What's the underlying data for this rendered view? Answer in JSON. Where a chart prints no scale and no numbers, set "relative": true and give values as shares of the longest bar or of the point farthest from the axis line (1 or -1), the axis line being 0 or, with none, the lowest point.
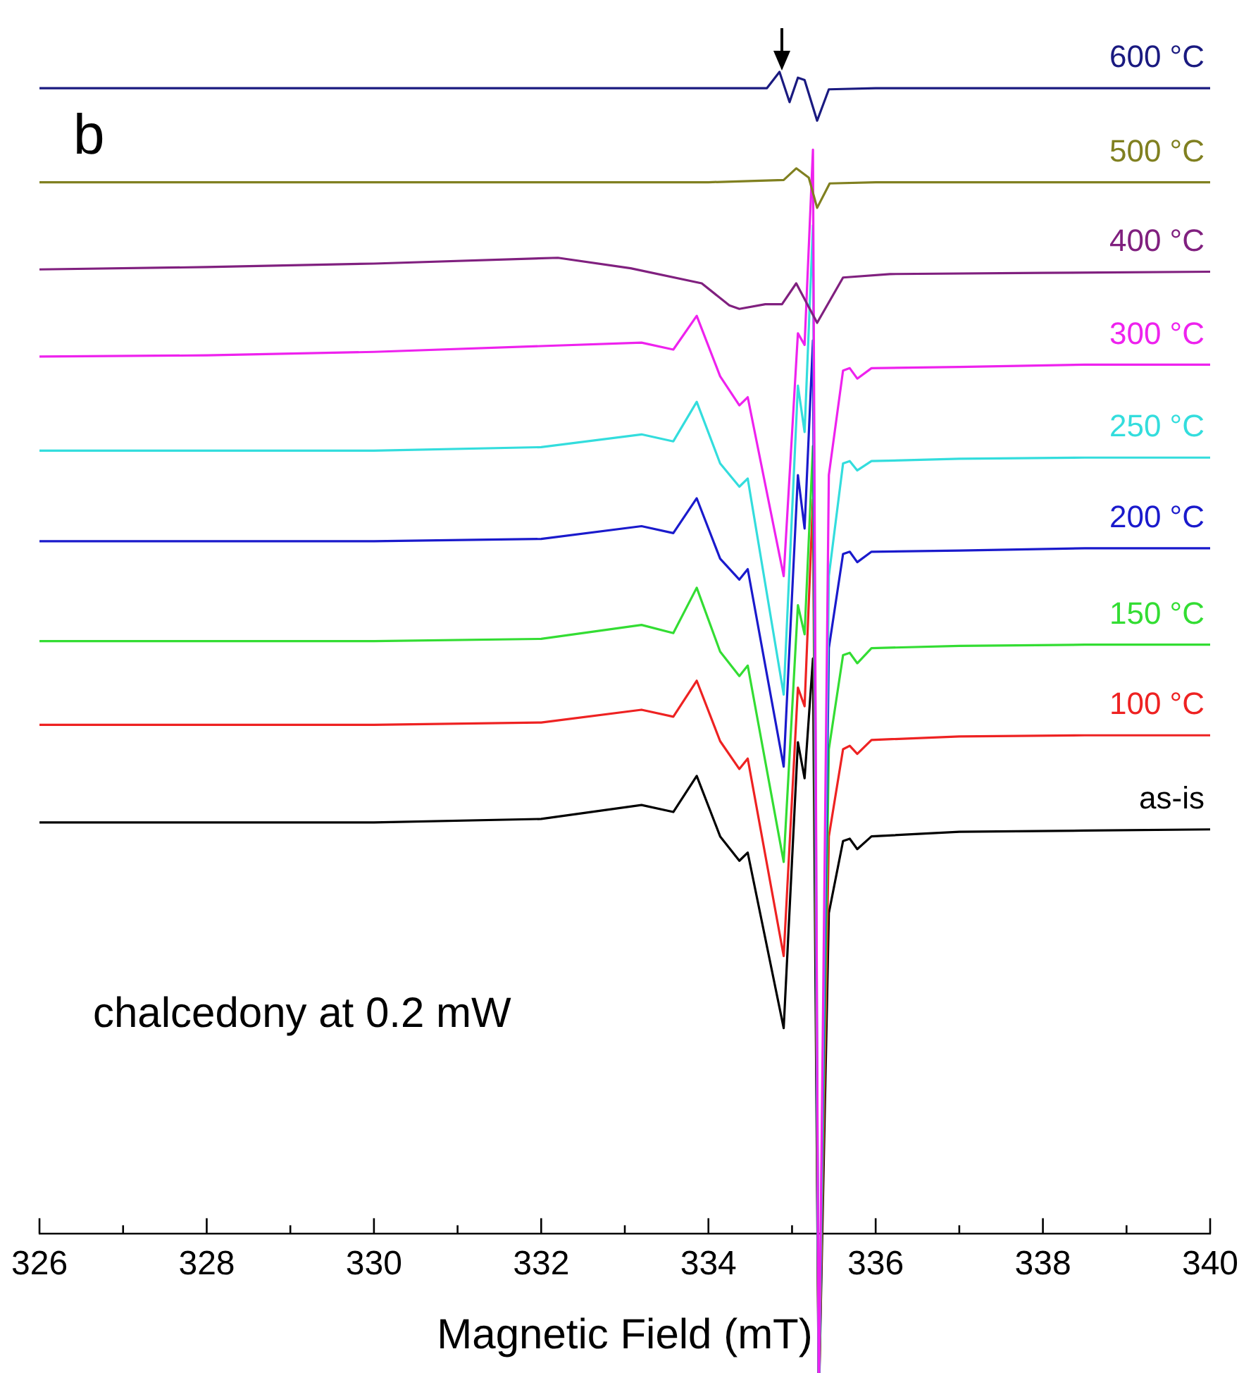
{
  "chart_data": {
    "type": "line",
    "relative": true,
    "xlabel": "Magnetic Field (mT)",
    "xlim": [
      326,
      340
    ],
    "xticks": [
      326,
      {
        "value": 327,
        "label": null
      },
      328,
      {
        "value": 329,
        "label": null
      },
      330,
      {
        "value": 331,
        "label": null
      },
      332,
      {
        "value": 333,
        "label": null
      },
      334,
      {
        "value": 335,
        "label": null
      },
      336,
      {
        "value": 337,
        "label": null
      },
      338,
      {
        "value": 339,
        "label": null
      },
      340
    ],
    "x": [
      326,
      328,
      330,
      332,
      333.2,
      333.58,
      333.86,
      334.14,
      334.37,
      334.47,
      334.9,
      335.07,
      335.15,
      335.25,
      335.32,
      335.44,
      335.61,
      335.69,
      335.78,
      335.95,
      337,
      338.5,
      340
    ],
    "marker": "none",
    "line_style": "solid",
    "grid": false,
    "annotations": [
      "b",
      "chalcedony at 0.2 mW"
    ],
    "series": [
      {
        "name": "600 °C",
        "color": "#1a1a80",
        "x": [
          326,
          330,
          334,
          334.7,
          334.85,
          334.97,
          335.07,
          335.15,
          335.3,
          335.44,
          336,
          340
        ],
        "values": [
          0.986,
          0.986,
          0.986,
          0.986,
          1.0,
          0.974,
          0.995,
          0.993,
          0.958,
          0.985,
          0.986,
          0.986
        ]
      },
      {
        "name": "500 °C",
        "color": "#808020",
        "x": [
          326,
          330,
          334,
          334.9,
          335.05,
          335.2,
          335.3,
          335.45,
          336,
          340
        ],
        "values": [
          0.905,
          0.905,
          0.905,
          0.907,
          0.917,
          0.909,
          0.883,
          0.904,
          0.905,
          0.905
        ]
      },
      {
        "name": "400 °C",
        "color": "#80207f",
        "x": [
          326,
          328,
          330,
          332.2,
          333.07,
          333.92,
          334.25,
          334.37,
          334.68,
          334.88,
          335.05,
          335.3,
          335.61,
          336.17,
          338,
          340
        ],
        "values": [
          0.83,
          0.832,
          0.835,
          0.84,
          0.831,
          0.818,
          0.799,
          0.796,
          0.8,
          0.8,
          0.818,
          0.784,
          0.823,
          0.826,
          0.827,
          0.828
        ]
      },
      {
        "name": "300 °C",
        "color": "#ee22ee",
        "values": [
          0.755,
          0.756,
          0.759,
          0.764,
          0.767,
          0.761,
          0.79,
          0.738,
          0.713,
          0.72,
          0.566,
          0.775,
          0.765,
          0.933,
          -0.146,
          0.653,
          0.743,
          0.745,
          0.736,
          0.745,
          0.746,
          0.748,
          0.748
        ]
      },
      {
        "name": "250 °C",
        "color": "#33dddd",
        "values": [
          0.674,
          0.674,
          0.674,
          0.677,
          0.688,
          0.682,
          0.716,
          0.663,
          0.643,
          0.65,
          0.464,
          0.73,
          0.69,
          0.868,
          -0.146,
          0.566,
          0.663,
          0.665,
          0.657,
          0.665,
          0.667,
          0.668,
          0.668
        ]
      },
      {
        "name": "200 °C",
        "color": "#1a1acc",
        "values": [
          0.596,
          0.596,
          0.596,
          0.598,
          0.609,
          0.603,
          0.633,
          0.581,
          0.563,
          0.572,
          0.402,
          0.653,
          0.607,
          0.769,
          -0.146,
          0.504,
          0.585,
          0.587,
          0.578,
          0.587,
          0.588,
          0.59,
          0.59
        ]
      },
      {
        "name": "150 °C",
        "color": "#33dd33",
        "values": [
          0.51,
          0.51,
          0.51,
          0.512,
          0.524,
          0.517,
          0.556,
          0.501,
          0.48,
          0.489,
          0.32,
          0.541,
          0.516,
          0.678,
          -0.146,
          0.417,
          0.498,
          0.5,
          0.491,
          0.504,
          0.506,
          0.507,
          0.507
        ]
      },
      {
        "name": "100 °C",
        "color": "#ee2222",
        "values": [
          0.438,
          0.438,
          0.438,
          0.44,
          0.451,
          0.445,
          0.476,
          0.424,
          0.4,
          0.409,
          0.239,
          0.47,
          0.454,
          0.632,
          -0.146,
          0.342,
          0.417,
          0.42,
          0.413,
          0.425,
          0.428,
          0.429,
          0.429
        ]
      },
      {
        "name": "as-is",
        "color": "#000000",
        "values": [
          0.354,
          0.354,
          0.354,
          0.357,
          0.369,
          0.363,
          0.394,
          0.342,
          0.321,
          0.328,
          0.177,
          0.423,
          0.392,
          0.495,
          -0.146,
          0.276,
          0.338,
          0.34,
          0.331,
          0.342,
          0.346,
          0.347,
          0.348
        ]
      }
    ]
  }
}
